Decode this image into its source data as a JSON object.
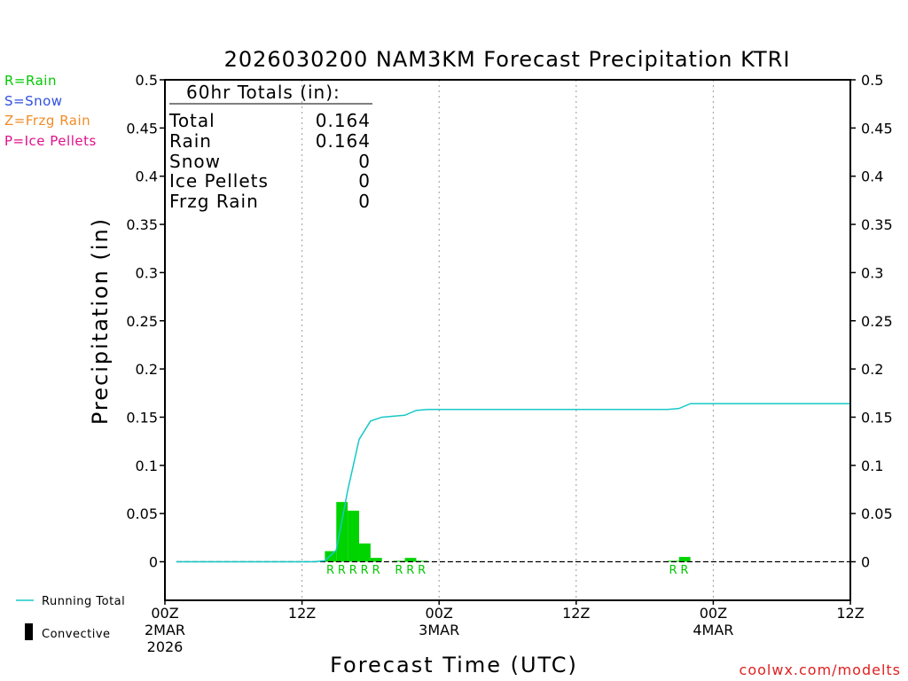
{
  "chart_data": {
    "type": "bar",
    "title": "2026030200 NAM3KM Forecast Precipitation KTRI",
    "xlabel": "Forecast Time (UTC)",
    "ylabel": "Precipitation (in)",
    "ylim": [
      -0.04,
      0.5
    ],
    "xlim": [
      0,
      60
    ],
    "y_ticks": [
      0,
      0.05,
      0.1,
      0.15,
      0.2,
      0.25,
      0.3,
      0.35,
      0.4,
      0.45,
      0.5
    ],
    "y_tick_labels": [
      "0",
      "0.05",
      "0.1",
      "0.15",
      "0.2",
      "0.25",
      "0.3",
      "0.35",
      "0.4",
      "0.45",
      "0.5"
    ],
    "x_ticks": [
      {
        "hour": 0,
        "lines": [
          "00Z",
          "2MAR",
          "2026"
        ]
      },
      {
        "hour": 12,
        "lines": [
          "12Z"
        ]
      },
      {
        "hour": 24,
        "lines": [
          "00Z",
          "3MAR"
        ]
      },
      {
        "hour": 36,
        "lines": [
          "12Z"
        ]
      },
      {
        "hour": 48,
        "lines": [
          "00Z",
          "4MAR"
        ]
      },
      {
        "hour": 60,
        "lines": [
          "12Z"
        ]
      }
    ],
    "grid": "vertical dotted",
    "totals": {
      "header": "60hr Totals (in):",
      "rows": [
        {
          "label": "Total",
          "value": "0.164"
        },
        {
          "label": "Rain",
          "value": "0.164"
        },
        {
          "label": "Snow",
          "value": "0"
        },
        {
          "label": "Ice Pellets",
          "value": "0"
        },
        {
          "label": "Frzg Rain",
          "value": "0"
        }
      ]
    },
    "ptype_key": [
      {
        "text": "R=Rain",
        "color": "#00c800"
      },
      {
        "text": "S=Snow",
        "color": "#3050e0"
      },
      {
        "text": "Z=Frzg Rain",
        "color": "#f08c28"
      },
      {
        "text": "P=Ice Pellets",
        "color": "#e0108c"
      }
    ],
    "bar_color": "#00d400",
    "running_total_color": "#18c8c8",
    "bars": [
      {
        "hour": 15,
        "value": 0.011,
        "ptype": "R"
      },
      {
        "hour": 16,
        "value": 0.062,
        "ptype": "R"
      },
      {
        "hour": 17,
        "value": 0.053,
        "ptype": "R"
      },
      {
        "hour": 18,
        "value": 0.019,
        "ptype": "R"
      },
      {
        "hour": 19,
        "value": 0.004,
        "ptype": "R"
      },
      {
        "hour": 21,
        "value": 0.001,
        "ptype": "R"
      },
      {
        "hour": 22,
        "value": 0.004,
        "ptype": "R"
      },
      {
        "hour": 23,
        "value": 0.001,
        "ptype": "R"
      },
      {
        "hour": 45,
        "value": 0.001,
        "ptype": "R"
      },
      {
        "hour": 46,
        "value": 0.005,
        "ptype": "R"
      }
    ],
    "running_total": {
      "x": [
        1,
        13,
        14,
        15,
        16,
        17,
        18,
        19,
        20,
        21,
        22,
        23,
        24,
        30,
        36,
        42,
        44,
        45,
        46,
        48,
        54,
        60
      ],
      "y": [
        0,
        0,
        0.001,
        0.012,
        0.074,
        0.127,
        0.146,
        0.15,
        0.151,
        0.152,
        0.157,
        0.158,
        0.158,
        0.158,
        0.158,
        0.158,
        0.158,
        0.159,
        0.164,
        0.164,
        0.164,
        0.164
      ]
    },
    "legend": [
      {
        "label": "Running Total",
        "symbol": "line"
      },
      {
        "label": "Convective",
        "symbol": "bar"
      }
    ],
    "credit": "coolwx.com/modelts"
  }
}
